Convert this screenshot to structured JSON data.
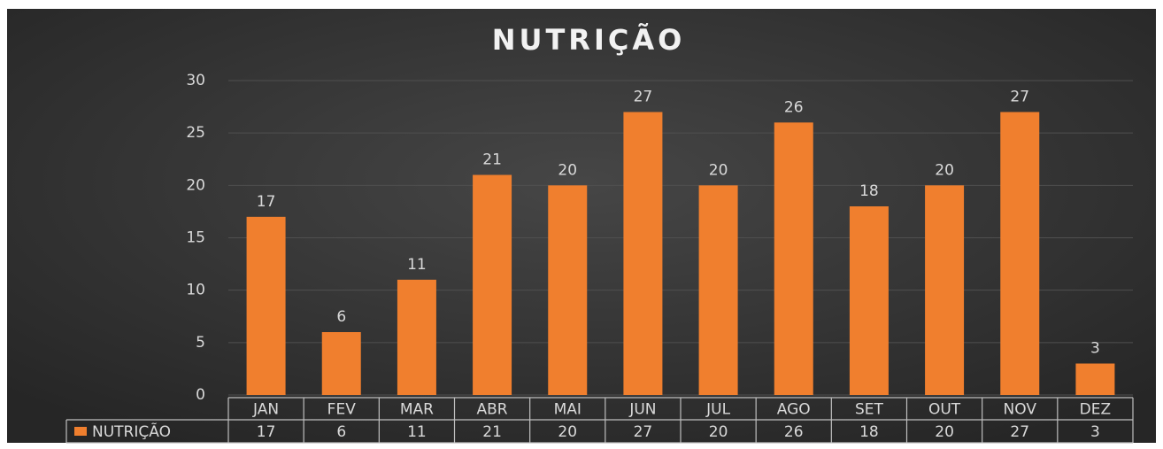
{
  "chart_data": {
    "type": "bar",
    "title": "NUTRIÇÃO",
    "categories": [
      "JAN",
      "FEV",
      "MAR",
      "ABR",
      "MAI",
      "JUN",
      "JUL",
      "AGO",
      "SET",
      "OUT",
      "NOV",
      "DEZ"
    ],
    "series": [
      {
        "name": "NUTRIÇÃO",
        "color": "#f07f2e",
        "values": [
          17,
          6,
          11,
          21,
          20,
          27,
          20,
          26,
          18,
          20,
          27,
          3
        ]
      }
    ],
    "ylim": [
      0,
      30
    ],
    "yticks": [
      0,
      5,
      10,
      15,
      20,
      25,
      30
    ],
    "grid": true,
    "data_table": true
  }
}
